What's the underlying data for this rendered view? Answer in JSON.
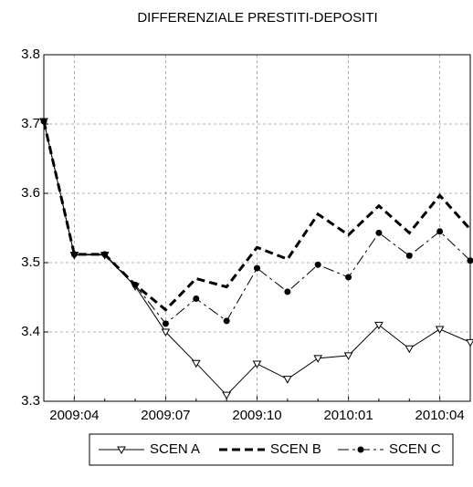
{
  "chart_data": {
    "type": "line",
    "title": "DIFFERENZIALE PRESTITI-DEPOSITI",
    "categories": [
      null,
      "2009:04",
      null,
      null,
      "2009:07",
      null,
      null,
      "2009:10",
      null,
      null,
      "2010:01",
      null,
      null,
      "2010:04",
      null
    ],
    "series": [
      {
        "name": "SCEN A",
        "color": "#000000",
        "values": [
          3.704,
          3.511,
          3.511,
          3.466,
          3.4,
          3.355,
          3.309,
          3.354,
          3.332,
          3.362,
          3.366,
          3.41,
          3.376,
          3.404,
          3.385
        ]
      },
      {
        "name": "SCEN B",
        "color": "#000000",
        "values": [
          3.704,
          3.512,
          3.512,
          3.468,
          3.432,
          3.477,
          3.465,
          3.522,
          3.505,
          3.57,
          3.54,
          3.582,
          3.543,
          3.597,
          3.548
        ]
      },
      {
        "name": "SCEN C",
        "color": "#000000",
        "values": [
          3.704,
          3.512,
          3.512,
          3.468,
          3.412,
          3.448,
          3.416,
          3.492,
          3.458,
          3.497,
          3.479,
          3.543,
          3.51,
          3.545,
          3.503
        ]
      }
    ],
    "ylim": [
      3.3,
      3.8
    ],
    "yticks": [
      3.3,
      3.4,
      3.5,
      3.6,
      3.7,
      3.8
    ],
    "grid": true
  }
}
